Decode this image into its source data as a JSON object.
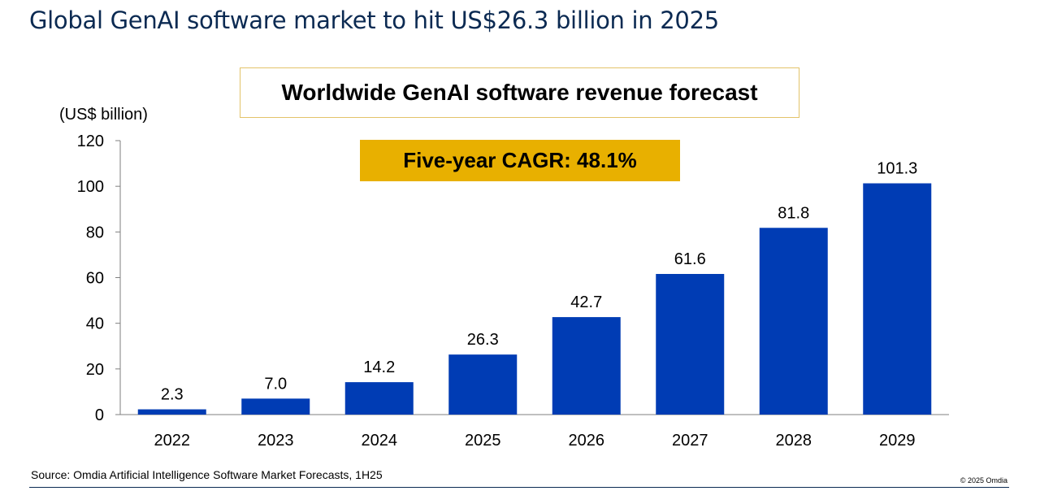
{
  "slide": {
    "title": "Global GenAI software market to hit US$26.3 billion in 2025",
    "source": "Source: Omdia Artificial Intelligence Software Market Forecasts, 1H25",
    "copyright": "© 2025 Omdia"
  },
  "colors": {
    "title": "#0b2a52",
    "bar": "#003cb4",
    "cagr_box": "#e8b000",
    "title_box_border": "#e3c36a"
  },
  "chart_data": {
    "type": "bar",
    "title": "Worldwide GenAI software revenue forecast",
    "callout": "Five-year CAGR: 48.1%",
    "ylabel": "(US$ billion)",
    "xlabel": "",
    "categories": [
      "2022",
      "2023",
      "2024",
      "2025",
      "2026",
      "2027",
      "2028",
      "2029"
    ],
    "values": [
      2.3,
      7.0,
      14.2,
      26.3,
      42.7,
      61.6,
      81.8,
      101.3
    ],
    "value_labels": [
      "2.3",
      "7.0",
      "14.2",
      "26.3",
      "42.7",
      "61.6",
      "81.8",
      "101.3"
    ],
    "ylim": [
      0,
      120
    ],
    "yticks": [
      0,
      20,
      40,
      60,
      80,
      100,
      120
    ],
    "grid": false,
    "legend": "none"
  }
}
